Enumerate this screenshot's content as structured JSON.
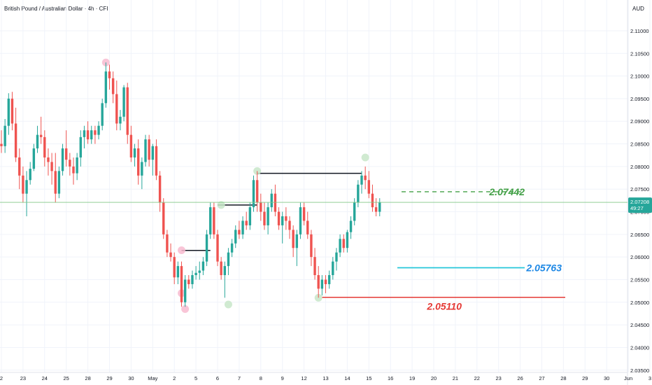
{
  "header": {
    "symbol_title": "British Pound / Australian Dollar · 4h · CFI",
    "currency": "AUD"
  },
  "price_tag": {
    "price": "2.07208",
    "countdown": "49:27"
  },
  "colors": {
    "up": "#26a69a",
    "down": "#ef5350",
    "last_line": "#81c784",
    "level_target": "#43a047",
    "level_mid": "#26c6da",
    "level_support": "#e53935"
  },
  "annotations": {
    "target_level": "2.07442",
    "mid_level": "2.05763",
    "support_level": "2.05110"
  },
  "chart_data": {
    "type": "candlestick",
    "y_axis": {
      "range": [
        2.0345,
        2.1168
      ],
      "ticks": [
        "2.11000",
        "2.10500",
        "2.10000",
        "2.09500",
        "2.09000",
        "2.08500",
        "2.08000",
        "2.07500",
        "2.07000",
        "2.06500",
        "2.06000",
        "2.05500",
        "2.05000",
        "2.04500",
        "2.04000",
        "2.03500"
      ],
      "tick_values": [
        2.11,
        2.105,
        2.1,
        2.095,
        2.09,
        2.085,
        2.08,
        2.075,
        2.07,
        2.065,
        2.06,
        2.055,
        2.05,
        2.045,
        2.04,
        2.035
      ]
    },
    "x_axis": {
      "labels": [
        "2",
        "23",
        "24",
        "25",
        "28",
        "29",
        "30",
        "May",
        "2",
        "5",
        "6",
        "7",
        "8",
        "9",
        "12",
        "13",
        "14",
        "15",
        "16",
        "19",
        "20",
        "21",
        "22",
        "23",
        "26",
        "27",
        "28",
        "29",
        "30",
        "Jun",
        "3"
      ],
      "label_bar_index": [
        0,
        6,
        12,
        18,
        24,
        30,
        36,
        42,
        48,
        54,
        60,
        66,
        72,
        78,
        84,
        90,
        96,
        102,
        108,
        114,
        120,
        126,
        132,
        138,
        144,
        150,
        156,
        162,
        168,
        174,
        180
      ]
    },
    "grid": true,
    "candles": [
      [
        2.085,
        2.088,
        2.083,
        2.0845
      ],
      [
        2.0845,
        2.0905,
        2.083,
        2.089
      ],
      [
        2.089,
        2.0962,
        2.087,
        2.095
      ],
      [
        2.095,
        2.0965,
        2.088,
        2.0895
      ],
      [
        2.0895,
        2.093,
        2.081,
        2.082
      ],
      [
        2.082,
        2.084,
        2.075,
        2.078
      ],
      [
        2.078,
        2.08,
        2.072,
        2.074
      ],
      [
        2.074,
        2.079,
        2.069,
        2.077
      ],
      [
        2.077,
        2.081,
        2.076,
        2.0795
      ],
      [
        2.0795,
        2.085,
        2.079,
        2.084
      ],
      [
        2.084,
        2.089,
        2.083,
        2.087
      ],
      [
        2.087,
        2.091,
        2.085,
        2.0865
      ],
      [
        2.0865,
        2.088,
        2.08,
        2.082
      ],
      [
        2.082,
        2.084,
        2.078,
        2.081
      ],
      [
        2.081,
        2.083,
        2.076,
        2.079
      ],
      [
        2.079,
        2.083,
        2.072,
        2.074
      ],
      [
        2.074,
        2.08,
        2.073,
        2.079
      ],
      [
        2.079,
        2.085,
        2.078,
        2.084
      ],
      [
        2.084,
        2.088,
        2.08,
        2.0815
      ],
      [
        2.0815,
        2.083,
        2.078,
        2.08
      ],
      [
        2.08,
        2.082,
        2.076,
        2.0785
      ],
      [
        2.0785,
        2.083,
        2.077,
        2.082
      ],
      [
        2.082,
        2.088,
        2.08,
        2.0865
      ],
      [
        2.0865,
        2.089,
        2.084,
        2.088
      ],
      [
        2.088,
        2.09,
        2.085,
        2.086
      ],
      [
        2.086,
        2.089,
        2.085,
        2.088
      ],
      [
        2.088,
        2.089,
        2.085,
        2.087
      ],
      [
        2.087,
        2.09,
        2.086,
        2.089
      ],
      [
        2.089,
        2.095,
        2.088,
        2.094
      ],
      [
        2.094,
        2.103,
        2.093,
        2.101
      ],
      [
        2.101,
        2.1025,
        2.097,
        2.0995
      ],
      [
        2.0995,
        2.101,
        2.094,
        2.096
      ],
      [
        2.096,
        2.099,
        2.088,
        2.0895
      ],
      [
        2.0895,
        2.0925,
        2.088,
        2.091
      ],
      [
        2.091,
        2.098,
        2.09,
        2.0975
      ],
      [
        2.0975,
        2.0985,
        2.085,
        2.087
      ],
      [
        2.087,
        2.089,
        2.081,
        2.082
      ],
      [
        2.082,
        2.085,
        2.08,
        2.084
      ],
      [
        2.084,
        2.086,
        2.076,
        2.078
      ],
      [
        2.078,
        2.082,
        2.075,
        2.081
      ],
      [
        2.081,
        2.087,
        2.08,
        2.086
      ],
      [
        2.086,
        2.087,
        2.08,
        2.0815
      ],
      [
        2.0815,
        2.085,
        2.078,
        2.0845
      ],
      [
        2.0845,
        2.086,
        2.077,
        2.078
      ],
      [
        2.078,
        2.079,
        2.07,
        2.072
      ],
      [
        2.072,
        2.073,
        2.064,
        2.065
      ],
      [
        2.065,
        2.066,
        2.06,
        2.061
      ],
      [
        2.061,
        2.063,
        2.059,
        2.06
      ],
      [
        2.06,
        2.061,
        2.054,
        2.0555
      ],
      [
        2.0555,
        2.059,
        2.054,
        2.058
      ],
      [
        2.058,
        2.059,
        2.049,
        2.05
      ],
      [
        2.05,
        2.056,
        2.049,
        2.055
      ],
      [
        2.055,
        2.056,
        2.053,
        2.054
      ],
      [
        2.054,
        2.057,
        2.053,
        2.056
      ],
      [
        2.056,
        2.058,
        2.055,
        2.0565
      ],
      [
        2.0565,
        2.059,
        2.055,
        2.057
      ],
      [
        2.057,
        2.06,
        2.056,
        2.059
      ],
      [
        2.059,
        2.066,
        2.058,
        2.065
      ],
      [
        2.065,
        2.072,
        2.064,
        2.071
      ],
      [
        2.071,
        2.072,
        2.064,
        2.065
      ],
      [
        2.065,
        2.066,
        2.058,
        2.059
      ],
      [
        2.059,
        2.06,
        2.055,
        2.056
      ],
      [
        2.056,
        2.059,
        2.051,
        2.058
      ],
      [
        2.058,
        2.062,
        2.056,
        2.061
      ],
      [
        2.061,
        2.064,
        2.06,
        2.063
      ],
      [
        2.063,
        2.067,
        2.062,
        2.066
      ],
      [
        2.066,
        2.068,
        2.064,
        2.065
      ],
      [
        2.065,
        2.069,
        2.064,
        2.068
      ],
      [
        2.068,
        2.07,
        2.066,
        2.067
      ],
      [
        2.067,
        2.072,
        2.066,
        2.071
      ],
      [
        2.071,
        2.078,
        2.07,
        2.077
      ],
      [
        2.077,
        2.079,
        2.07,
        2.072
      ],
      [
        2.072,
        2.074,
        2.068,
        2.07
      ],
      [
        2.07,
        2.072,
        2.066,
        2.067
      ],
      [
        2.067,
        2.072,
        2.065,
        2.071
      ],
      [
        2.071,
        2.075,
        2.07,
        2.074
      ],
      [
        2.074,
        2.076,
        2.069,
        2.07
      ],
      [
        2.07,
        2.071,
        2.066,
        2.067
      ],
      [
        2.067,
        2.07,
        2.063,
        2.069
      ],
      [
        2.069,
        2.071,
        2.066,
        2.068
      ],
      [
        2.068,
        2.069,
        2.064,
        2.066
      ],
      [
        2.066,
        2.067,
        2.06,
        2.062
      ],
      [
        2.062,
        2.066,
        2.058,
        2.065
      ],
      [
        2.065,
        2.072,
        2.064,
        2.071
      ],
      [
        2.071,
        2.072,
        2.067,
        2.068
      ],
      [
        2.068,
        2.07,
        2.064,
        2.065
      ],
      [
        2.065,
        2.066,
        2.058,
        2.06
      ],
      [
        2.06,
        2.062,
        2.055,
        2.056
      ],
      [
        2.056,
        2.058,
        2.051,
        2.053
      ],
      [
        2.053,
        2.056,
        2.0515,
        2.055
      ],
      [
        2.055,
        2.056,
        2.052,
        2.054
      ],
      [
        2.054,
        2.057,
        2.053,
        2.056
      ],
      [
        2.056,
        2.06,
        2.055,
        2.059
      ],
      [
        2.059,
        2.062,
        2.057,
        2.061
      ],
      [
        2.061,
        2.065,
        2.06,
        2.064
      ],
      [
        2.064,
        2.065,
        2.061,
        2.062
      ],
      [
        2.062,
        2.066,
        2.061,
        2.0655
      ],
      [
        2.0655,
        2.069,
        2.064,
        2.068
      ],
      [
        2.068,
        2.073,
        2.067,
        2.072
      ],
      [
        2.072,
        2.077,
        2.071,
        2.076
      ],
      [
        2.076,
        2.079,
        2.074,
        2.078
      ],
      [
        2.078,
        2.08,
        2.075,
        2.077
      ],
      [
        2.077,
        2.079,
        2.073,
        2.074
      ],
      [
        2.074,
        2.076,
        2.07,
        2.071
      ],
      [
        2.071,
        2.073,
        2.069,
        2.07
      ],
      [
        2.07,
        2.073,
        2.069,
        2.07208
      ]
    ],
    "horizontal_levels": [
      {
        "value": 2.07442,
        "style": "dashed",
        "color": "#43a047"
      },
      {
        "value": 2.05763,
        "style": "solid",
        "color": "#26c6da"
      },
      {
        "value": 2.0511,
        "style": "solid",
        "color": "#e53935"
      }
    ],
    "structure_lines": [
      {
        "price": 2.06145,
        "from_bar": 50,
        "to_bar": 58
      },
      {
        "price": 2.0715,
        "from_bar": 60,
        "to_bar": 71
      },
      {
        "price": 2.0785,
        "from_bar": 71,
        "to_bar": 100
      }
    ],
    "swing_markers": [
      {
        "bar": 29,
        "price": 2.103,
        "kind": "high"
      },
      {
        "bar": 50,
        "price": 2.0615,
        "kind": "high"
      },
      {
        "bar": 50,
        "price": 2.052,
        "kind": "low"
      },
      {
        "bar": 51,
        "price": 2.0485,
        "kind": "low"
      },
      {
        "bar": 61,
        "price": 2.0715,
        "kind": "high"
      },
      {
        "bar": 63,
        "price": 2.0495,
        "kind": "low"
      },
      {
        "bar": 71,
        "price": 2.079,
        "kind": "high"
      },
      {
        "bar": 88,
        "price": 2.051,
        "kind": "low"
      },
      {
        "bar": 101,
        "price": 2.082,
        "kind": "high"
      }
    ]
  }
}
